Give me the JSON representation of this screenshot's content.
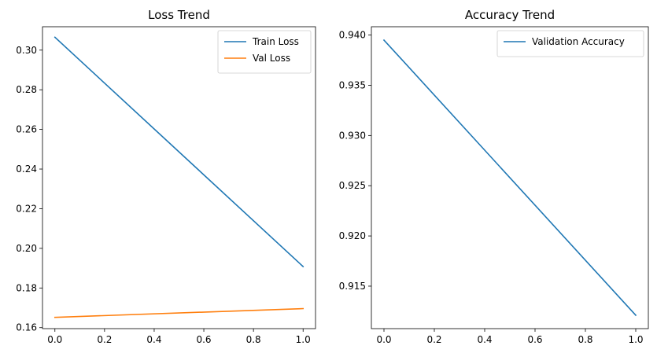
{
  "chart_data": [
    {
      "type": "line",
      "title": "Loss Trend",
      "xlabel": "",
      "ylabel": "",
      "xlim": [
        -0.05,
        1.05
      ],
      "ylim": [
        0.1595,
        0.3118
      ],
      "x_ticks": [
        "0.0",
        "0.2",
        "0.4",
        "0.6",
        "0.8",
        "1.0"
      ],
      "y_ticks": [
        "0.16",
        "0.18",
        "0.20",
        "0.22",
        "0.24",
        "0.26",
        "0.28",
        "0.30"
      ],
      "legend_position": "top-right",
      "grid": false,
      "series": [
        {
          "name": "Train Loss",
          "color": "#1f77b4",
          "x": [
            0,
            1
          ],
          "y": [
            0.3065,
            0.1908
          ]
        },
        {
          "name": "Val Loss",
          "color": "#ff7f0e",
          "x": [
            0,
            1
          ],
          "y": [
            0.1652,
            0.1696
          ]
        }
      ]
    },
    {
      "type": "line",
      "title": "Accuracy Trend",
      "xlabel": "",
      "ylabel": "",
      "xlim": [
        -0.05,
        1.05
      ],
      "ylim": [
        0.91077,
        0.94083
      ],
      "x_ticks": [
        "0.0",
        "0.2",
        "0.4",
        "0.6",
        "0.8",
        "1.0"
      ],
      "y_ticks": [
        "0.915",
        "0.920",
        "0.925",
        "0.930",
        "0.935",
        "0.940"
      ],
      "legend_position": "top-right",
      "grid": false,
      "series": [
        {
          "name": "Validation Accuracy",
          "color": "#1f77b4",
          "x": [
            0,
            1
          ],
          "y": [
            0.9395,
            0.9121
          ]
        }
      ]
    }
  ]
}
